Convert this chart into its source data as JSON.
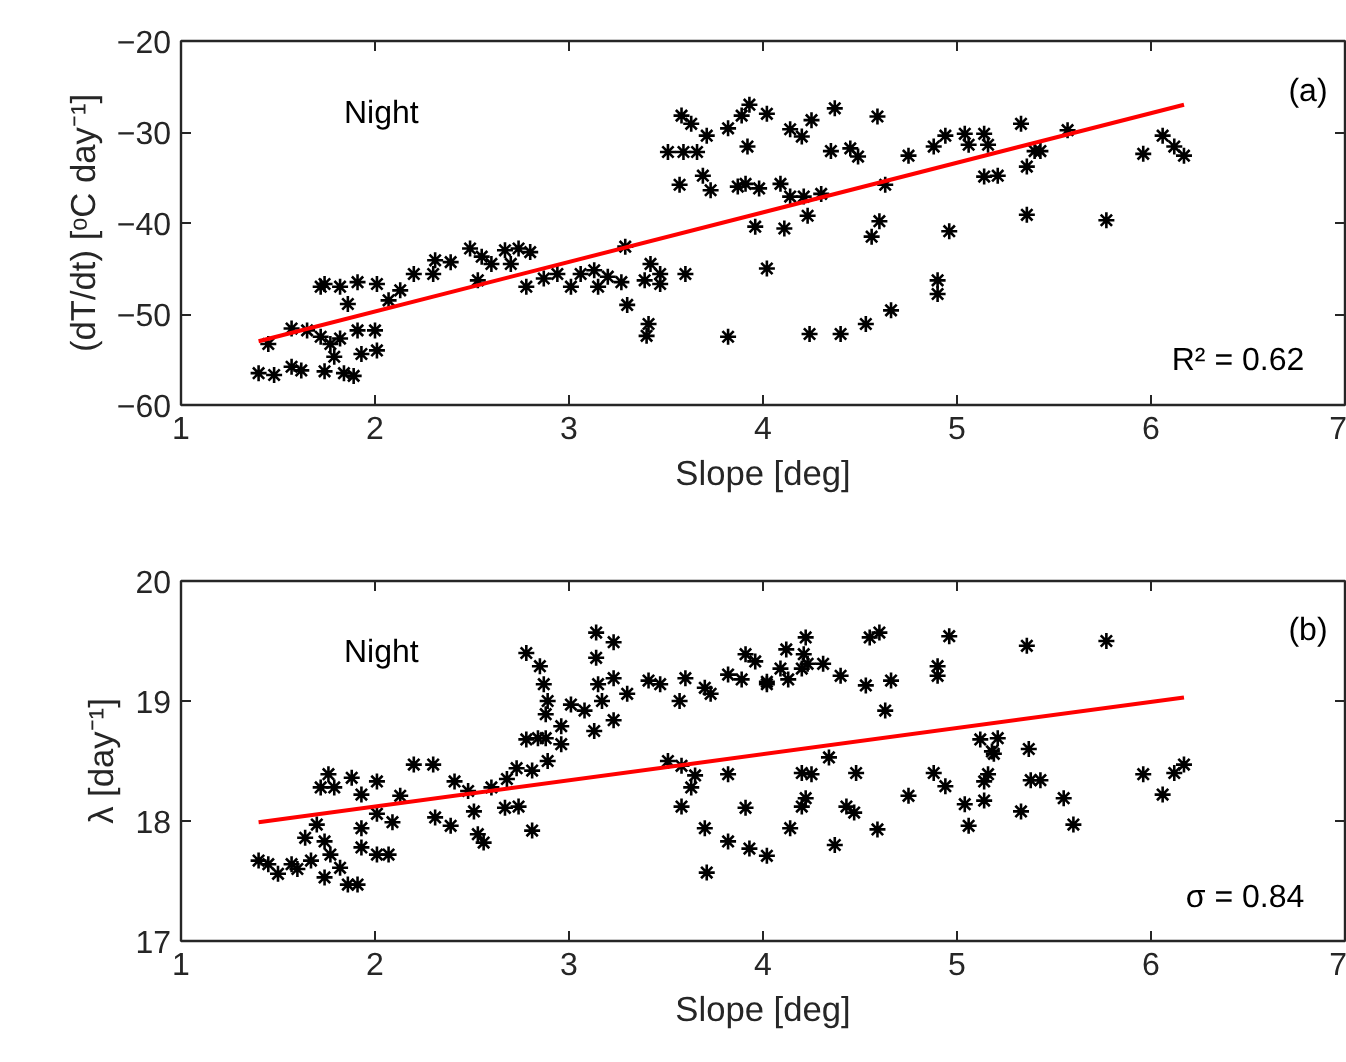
{
  "chart_data": [
    {
      "type": "scatter",
      "xlabel": "Slope [deg]",
      "ylabel": "(dT/dt) [ᵒC day⁻¹]",
      "xlim": [
        1,
        7
      ],
      "xticks": [
        1,
        2,
        3,
        4,
        5,
        6,
        7
      ],
      "ylim": [
        -60,
        -20
      ],
      "yticks": [
        -60,
        -50,
        -40,
        -30,
        -20
      ],
      "grid": false,
      "annotations": [
        "Night",
        "(a)",
        "R² = 0.62"
      ],
      "series": [
        {
          "marker": "cross",
          "color": "#000000",
          "x": [
            1.4,
            1.48,
            1.57,
            1.62,
            1.74,
            1.84,
            1.89,
            1.45,
            1.57,
            1.65,
            1.72,
            1.77,
            1.82,
            1.91,
            2.0,
            2.01,
            1.93,
            1.79,
            1.72,
            1.74,
            1.82,
            1.91,
            2.01,
            1.86,
            2.07,
            2.13,
            2.2,
            2.31,
            2.3,
            2.39,
            2.49,
            2.55,
            2.6,
            2.53,
            2.67,
            2.74,
            2.8,
            2.7,
            2.78,
            2.87,
            2.94,
            3.06,
            3.13,
            3.2,
            3.15,
            3.27,
            3.29,
            3.01,
            3.3,
            3.39,
            3.42,
            3.47,
            3.47,
            3.41,
            3.4,
            3.6,
            3.51,
            3.58,
            3.63,
            3.59,
            3.66,
            3.71,
            3.57,
            3.69,
            3.73,
            3.82,
            3.89,
            3.93,
            4.02,
            3.92,
            3.87,
            3.91,
            3.98,
            3.96,
            4.02,
            3.82,
            4.09,
            4.14,
            4.2,
            4.25,
            4.37,
            4.59,
            4.14,
            4.21,
            4.3,
            4.11,
            4.23,
            4.63,
            4.35,
            4.45,
            4.49,
            4.75,
            4.6,
            4.56,
            4.24,
            4.4,
            4.53,
            4.66,
            4.9,
            4.9,
            4.96,
            4.88,
            4.94,
            5.04,
            5.14,
            5.06,
            5.16,
            5.14,
            5.21,
            5.33,
            5.36,
            5.4,
            5.43,
            5.36,
            5.57,
            5.77,
            5.96,
            6.06,
            6.12,
            6.17
          ],
          "values": [
            -56.5,
            -56.7,
            -55.8,
            -56.2,
            -56.3,
            -56.5,
            -56.8,
            -53.3,
            -51.6,
            -51.8,
            -52.5,
            -53.3,
            -52.7,
            -51.8,
            -51.8,
            -54.0,
            -54.4,
            -54.7,
            -47.0,
            -46.7,
            -47.0,
            -46.5,
            -46.7,
            -48.9,
            -48.5,
            -47.4,
            -45.6,
            -44.1,
            -45.6,
            -44.3,
            -42.8,
            -43.7,
            -44.5,
            -46.3,
            -43.0,
            -42.8,
            -43.2,
            -44.5,
            -47.0,
            -46.1,
            -45.6,
            -45.6,
            -45.2,
            -45.9,
            -47.0,
            -46.5,
            -42.6,
            -47.0,
            -49.0,
            -46.3,
            -44.5,
            -45.6,
            -46.7,
            -51.1,
            -52.4,
            -45.6,
            -32.2,
            -28.2,
            -29.1,
            -32.2,
            -32.2,
            -30.4,
            -35.8,
            -34.8,
            -36.4,
            -29.6,
            -28.2,
            -27.0,
            -28.0,
            -31.6,
            -36.0,
            -35.7,
            -36.2,
            -40.4,
            -45.0,
            -52.5,
            -35.7,
            -29.7,
            -30.5,
            -28.7,
            -27.4,
            -28.3,
            -37.1,
            -37.1,
            -36.8,
            -40.6,
            -39.2,
            -35.8,
            -32.1,
            -31.8,
            -32.7,
            -32.6,
            -39.8,
            -41.5,
            -52.2,
            -52.2,
            -51.1,
            -49.6,
            -46.3,
            -47.8,
            -40.9,
            -31.6,
            -30.4,
            -30.2,
            -30.2,
            -31.4,
            -31.4,
            -34.9,
            -34.8,
            -29.1,
            -33.8,
            -32.1,
            -32.1,
            -39.1,
            -29.8,
            -39.7,
            -32.4,
            -30.4,
            -31.6,
            -32.6
          ]
        },
        {
          "type": "line",
          "marker": "none",
          "color": "#ff0000",
          "x": [
            1.4,
            6.17
          ],
          "values": [
            -53.0,
            -27.0
          ]
        }
      ]
    },
    {
      "type": "scatter",
      "xlabel": "Slope [deg]",
      "ylabel": "λ [day⁻¹]",
      "xlim": [
        1,
        7
      ],
      "xticks": [
        1,
        2,
        3,
        4,
        5,
        6,
        7
      ],
      "ylim": [
        17,
        20
      ],
      "yticks": [
        17,
        18,
        19,
        20
      ],
      "grid": false,
      "annotations": [
        "Night",
        "(b)",
        "σ = 0.84"
      ],
      "series": [
        {
          "marker": "cross",
          "color": "#000000",
          "x": [
            1.4,
            1.45,
            1.5,
            1.57,
            1.6,
            1.67,
            1.7,
            1.72,
            1.76,
            1.79,
            1.88,
            1.93,
            2.01,
            1.74,
            1.77,
            1.82,
            1.86,
            1.91,
            1.74,
            1.64,
            1.93,
            1.93,
            2.01,
            2.07,
            2.01,
            2.09,
            2.13,
            2.2,
            2.3,
            2.31,
            2.39,
            2.41,
            2.48,
            2.51,
            2.53,
            2.56,
            2.6,
            2.67,
            2.74,
            2.68,
            2.73,
            2.81,
            2.81,
            2.89,
            2.78,
            2.84,
            2.88,
            2.96,
            2.96,
            2.88,
            2.87,
            2.89,
            2.78,
            2.85,
            3.01,
            3.08,
            3.13,
            3.23,
            3.14,
            3.14,
            3.23,
            3.15,
            3.17,
            3.23,
            3.3,
            3.41,
            3.47,
            3.6,
            3.57,
            3.7,
            3.73,
            3.82,
            3.89,
            3.91,
            3.96,
            4.02,
            3.51,
            3.58,
            3.65,
            3.63,
            3.58,
            3.82,
            3.7,
            3.71,
            3.82,
            3.91,
            3.93,
            4.02,
            4.02,
            4.09,
            4.12,
            4.22,
            4.21,
            4.2,
            4.23,
            4.31,
            4.13,
            4.4,
            4.55,
            4.6,
            4.53,
            4.66,
            4.63,
            4.9,
            4.9,
            4.96,
            5.36,
            5.77,
            4.2,
            4.25,
            4.34,
            4.48,
            4.22,
            4.2,
            4.43,
            4.47,
            4.14,
            4.37,
            4.59,
            4.75,
            4.88,
            4.94,
            5.04,
            5.06,
            5.14,
            5.14,
            5.16,
            5.12,
            5.21,
            5.19,
            5.18,
            5.37,
            5.38,
            5.43,
            5.33,
            5.55,
            5.6,
            5.96,
            6.06,
            6.12,
            6.17
          ],
          "values": [
            17.67,
            17.64,
            17.56,
            17.64,
            17.6,
            17.67,
            17.97,
            18.28,
            18.39,
            18.28,
            18.36,
            18.22,
            18.33,
            17.83,
            17.72,
            17.61,
            17.47,
            17.47,
            17.53,
            17.86,
            17.94,
            17.78,
            17.72,
            17.72,
            18.06,
            17.99,
            18.21,
            18.47,
            18.47,
            18.03,
            17.96,
            18.33,
            18.25,
            18.08,
            17.89,
            17.82,
            18.28,
            18.11,
            18.12,
            18.35,
            18.44,
            17.92,
            18.42,
            18.5,
            18.68,
            18.69,
            18.69,
            18.79,
            18.64,
            18.89,
            19.14,
            19.0,
            19.4,
            19.29,
            18.97,
            18.92,
            18.75,
            18.84,
            19.36,
            19.57,
            19.49,
            19.14,
            19.0,
            19.19,
            19.06,
            19.17,
            19.14,
            19.19,
            19.0,
            19.11,
            19.06,
            19.22,
            19.18,
            19.39,
            19.33,
            19.16,
            18.5,
            18.46,
            18.38,
            18.28,
            18.12,
            18.39,
            17.94,
            17.57,
            17.83,
            18.11,
            17.77,
            17.71,
            19.14,
            19.27,
            19.43,
            19.53,
            19.39,
            19.27,
            19.31,
            19.31,
            19.18,
            19.21,
            19.53,
            19.57,
            19.13,
            19.17,
            18.92,
            19.29,
            19.21,
            19.54,
            19.46,
            19.5,
            18.4,
            18.39,
            18.53,
            18.4,
            18.19,
            18.12,
            18.12,
            18.07,
            17.94,
            17.8,
            17.93,
            18.21,
            18.4,
            18.29,
            18.14,
            17.96,
            18.17,
            18.33,
            18.39,
            18.68,
            18.69,
            18.56,
            18.58,
            18.6,
            18.34,
            18.34,
            18.08,
            18.19,
            17.97,
            18.39,
            18.22,
            18.4,
            18.47
          ]
        },
        {
          "type": "line",
          "marker": "none",
          "color": "#ff0000",
          "x": [
            1.4,
            6.17
          ],
          "values": [
            17.99,
            19.03
          ]
        }
      ]
    }
  ]
}
